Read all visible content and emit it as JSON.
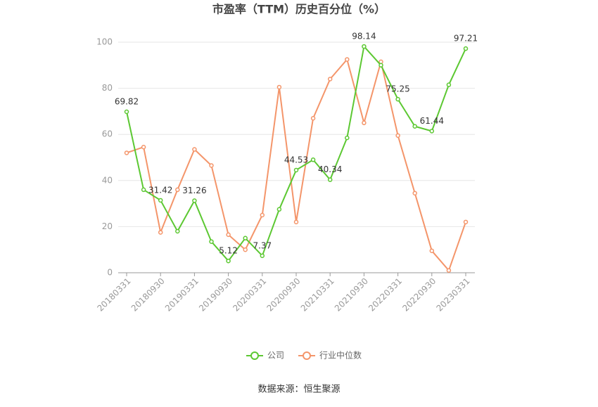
{
  "chart_data": {
    "type": "line",
    "title": "市盈率（TTM）历史百分位（%）",
    "source": "数据来源：恒生聚源",
    "categories": [
      "20180331",
      null,
      "20180930",
      null,
      "20190331",
      null,
      "20190930",
      null,
      "20200331",
      null,
      "20200930",
      null,
      "20210331",
      null,
      "20210930",
      null,
      "20220331",
      null,
      "20220930",
      null,
      "20230331"
    ],
    "series": [
      {
        "name": "公司",
        "color": "#5cc832",
        "values": [
          69.82,
          36,
          31.42,
          18,
          31.26,
          13.5,
          5.12,
          15,
          7.37,
          27.5,
          44.53,
          49,
          40.34,
          58.5,
          98.14,
          90,
          75.25,
          63.5,
          61.44,
          81.5,
          97.21
        ]
      },
      {
        "name": "行业中位数",
        "color": "#f4956a",
        "values": [
          52,
          54.5,
          17.5,
          36,
          53.5,
          46.5,
          16.5,
          10,
          25,
          80.5,
          22,
          67,
          84,
          92.5,
          65,
          91.5,
          59.5,
          34.5,
          9.5,
          1,
          22
        ]
      }
    ],
    "ylim": [
      0,
      100
    ],
    "yticks": [
      0,
      20,
      40,
      60,
      80,
      100
    ],
    "grid": true
  }
}
